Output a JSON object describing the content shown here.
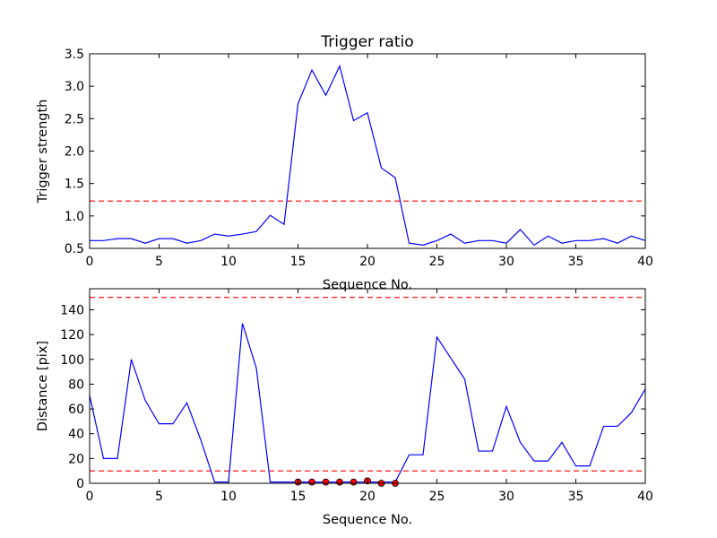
{
  "chart_data": [
    {
      "type": "line",
      "title": "Trigger ratio",
      "xlabel": "Sequence No.",
      "ylabel": "Trigger strength",
      "xlim": [
        0,
        40
      ],
      "ylim": [
        0.5,
        3.5
      ],
      "xticks": [
        "0",
        "5",
        "10",
        "15",
        "20",
        "25",
        "30",
        "35",
        "40"
      ],
      "yticks": [
        "0.5",
        "1.0",
        "1.5",
        "2.0",
        "2.5",
        "3.0",
        "3.5"
      ],
      "series": [
        {
          "color": "#0000ff",
          "x": [
            0,
            1,
            2,
            3,
            4,
            5,
            6,
            7,
            8,
            9,
            10,
            11,
            12,
            13,
            14,
            15,
            16,
            17,
            18,
            19,
            20,
            21,
            22,
            23,
            24,
            25,
            26,
            27,
            28,
            29,
            30,
            31,
            32,
            33,
            34,
            35,
            36,
            37,
            38,
            39,
            40
          ],
          "y": [
            0.62,
            0.62,
            0.65,
            0.65,
            0.58,
            0.65,
            0.65,
            0.58,
            0.62,
            0.72,
            0.69,
            0.72,
            0.76,
            1.01,
            0.87,
            2.73,
            3.25,
            2.86,
            3.31,
            2.47,
            2.59,
            1.74,
            1.59,
            0.58,
            0.55,
            0.62,
            0.72,
            0.58,
            0.62,
            0.62,
            0.58,
            0.79,
            0.55,
            0.69,
            0.58,
            0.62,
            0.62,
            0.65,
            0.58,
            0.69,
            0.62
          ]
        }
      ],
      "hlines": [
        {
          "y": 1.23,
          "color": "#ff0000",
          "style": "dashed"
        }
      ],
      "grid": false
    },
    {
      "type": "line",
      "title": "",
      "xlabel": "Sequence No.",
      "ylabel": "Distance [pix]",
      "xlim": [
        0,
        40
      ],
      "ylim": [
        0,
        157
      ],
      "xticks": [
        "0",
        "5",
        "10",
        "15",
        "20",
        "25",
        "30",
        "35",
        "40"
      ],
      "yticks": [
        "0",
        "20",
        "40",
        "60",
        "80",
        "100",
        "120",
        "140"
      ],
      "series": [
        {
          "color": "#0000ff",
          "x": [
            0,
            1,
            2,
            3,
            4,
            5,
            6,
            7,
            8,
            9,
            10,
            11,
            12,
            13,
            14,
            15,
            16,
            17,
            18,
            19,
            20,
            21,
            22,
            23,
            24,
            25,
            26,
            27,
            28,
            29,
            30,
            31,
            32,
            33,
            34,
            35,
            36,
            37,
            38,
            39,
            40
          ],
          "y": [
            71,
            20,
            20,
            100,
            67,
            48,
            48,
            65,
            35,
            1,
            1,
            129,
            93,
            1,
            1,
            1,
            1,
            1,
            1,
            1,
            1,
            1,
            1,
            23,
            23,
            118,
            101,
            84,
            26,
            26,
            62,
            33,
            18,
            18,
            33,
            14,
            14,
            46,
            46,
            57,
            76
          ]
        }
      ],
      "markers": {
        "color": "#ff0000",
        "x": [
          15,
          16,
          17,
          18,
          19,
          20,
          21,
          22
        ],
        "y": [
          1,
          1,
          1,
          1,
          1,
          2,
          0,
          0
        ]
      },
      "hlines": [
        {
          "y": 150,
          "color": "#ff0000",
          "style": "dashed"
        },
        {
          "y": 10,
          "color": "#ff0000",
          "style": "dashed"
        }
      ],
      "grid": false
    }
  ]
}
